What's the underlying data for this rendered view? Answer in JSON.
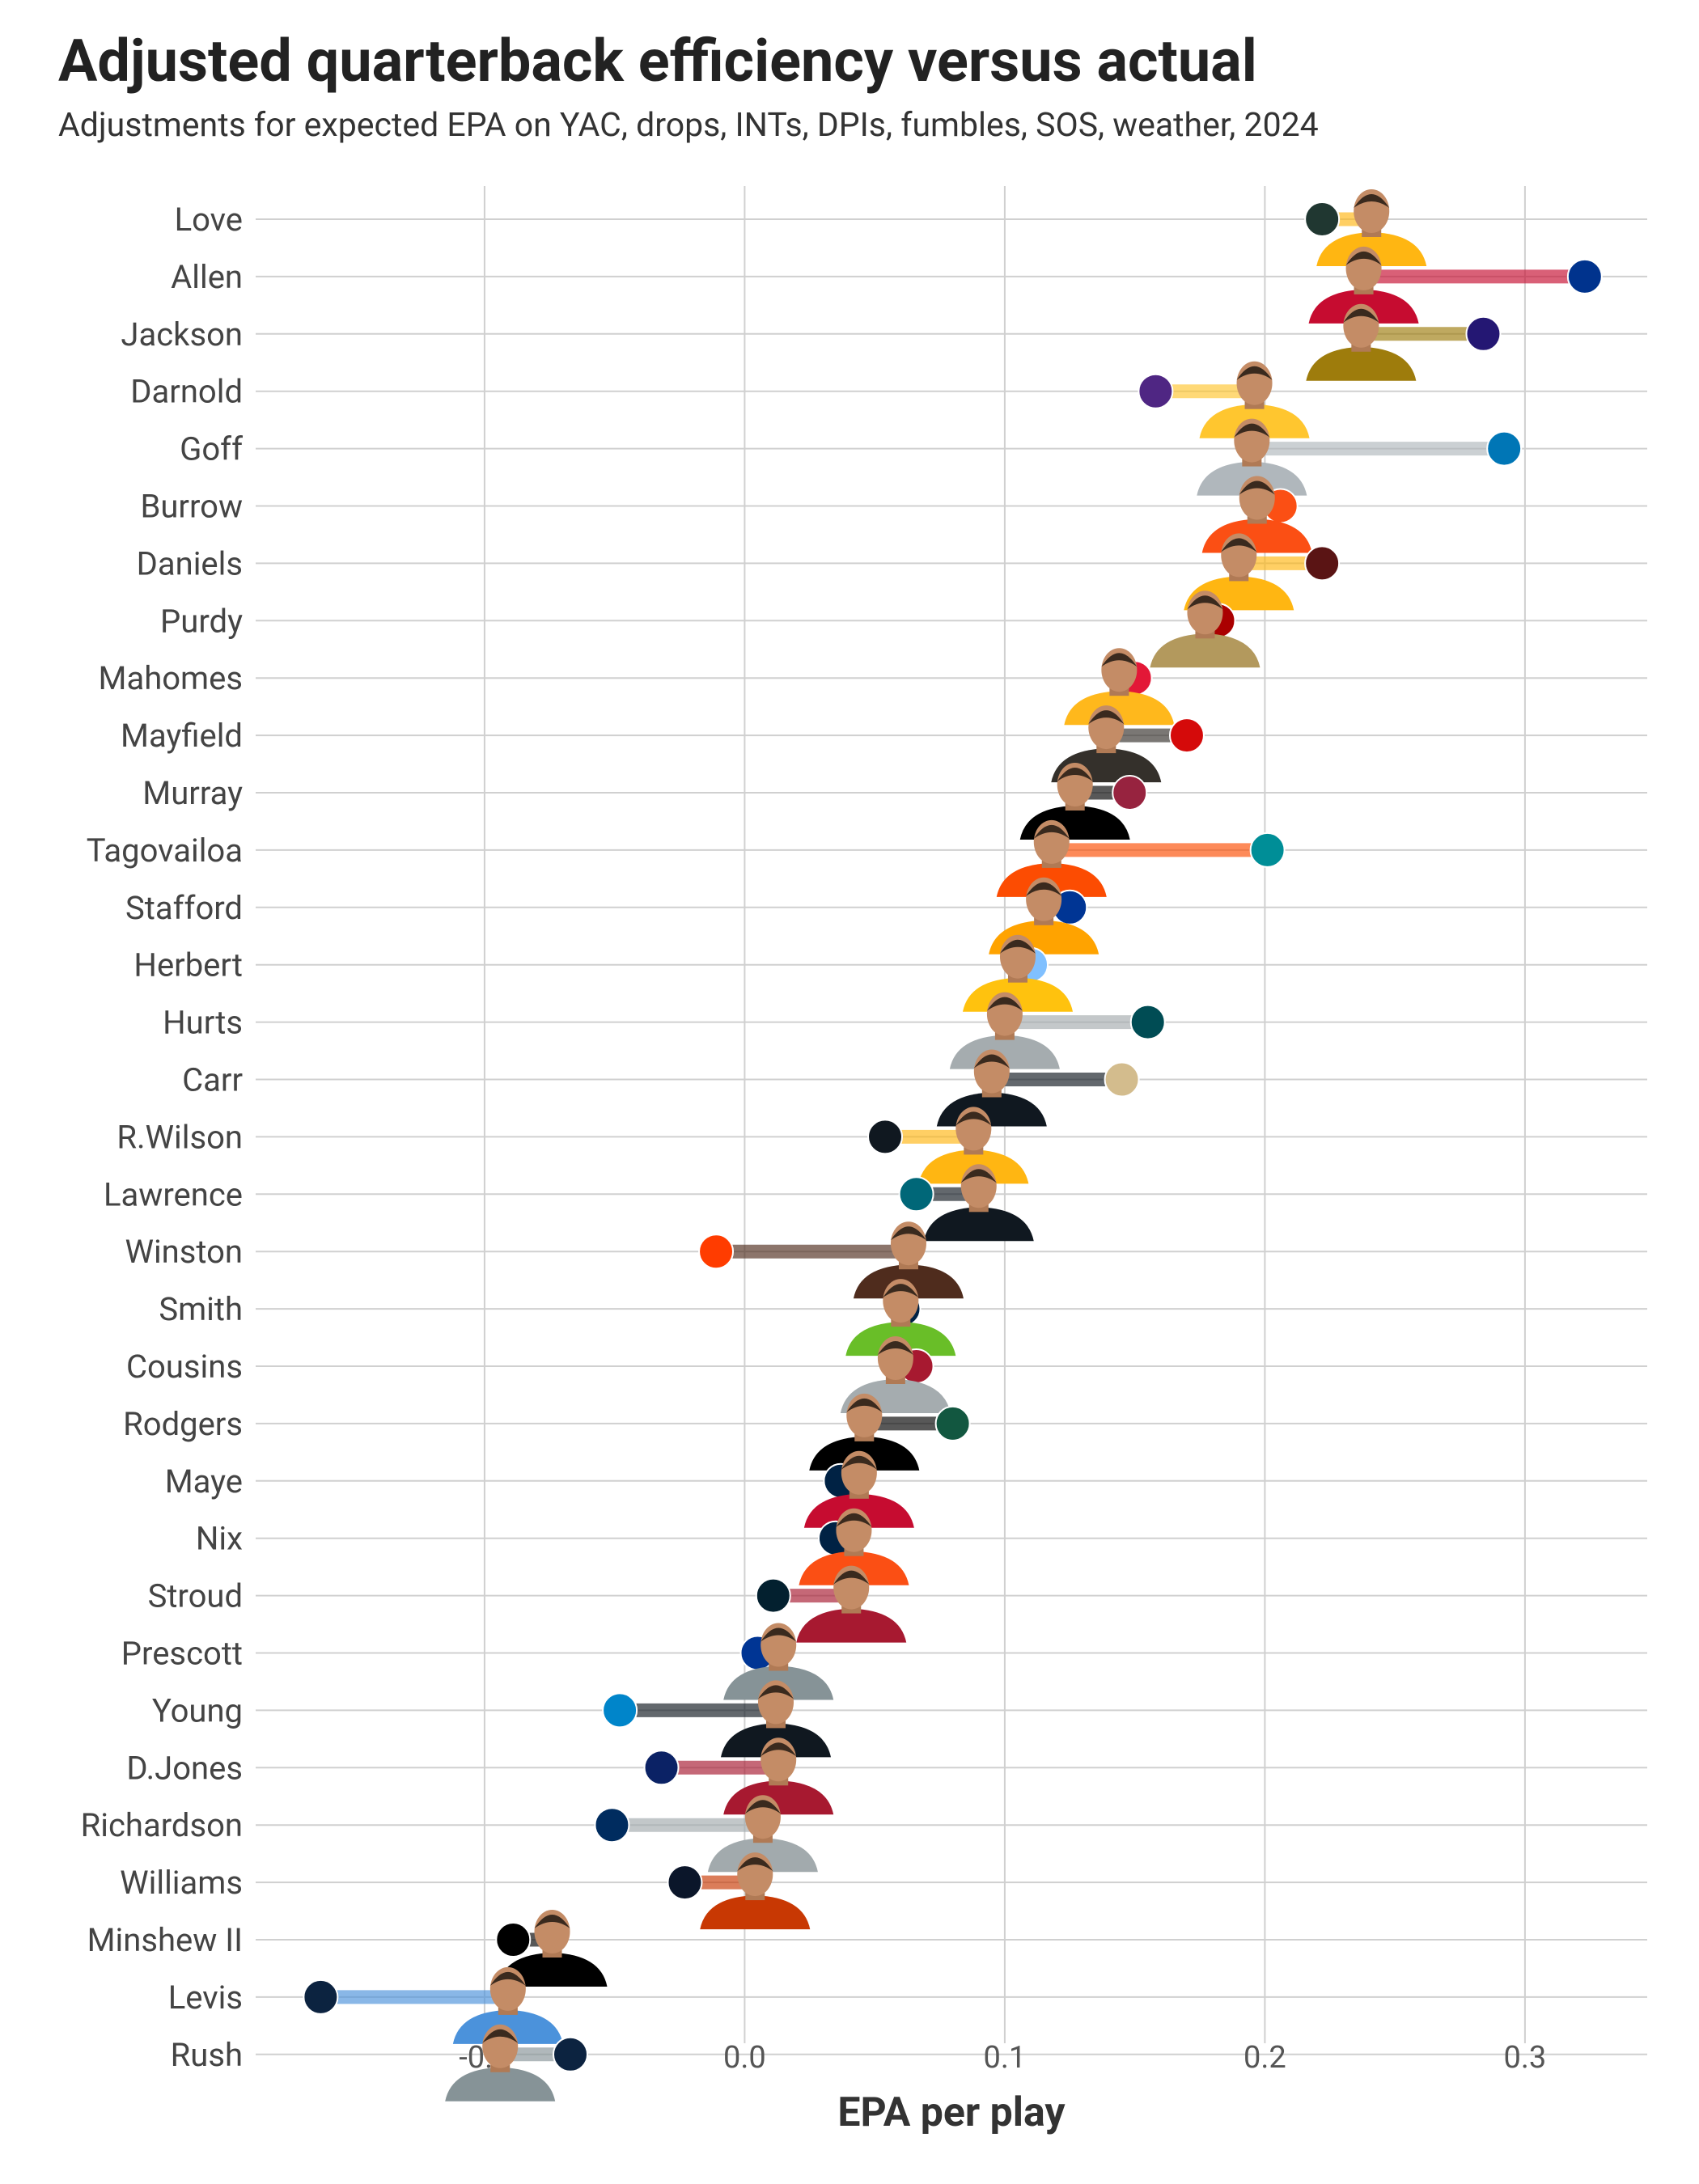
{
  "chart_data": {
    "type": "dumbbell",
    "title": "Adjusted quarterback efficiency versus actual",
    "subtitle": "Adjustments for expected EPA on YAC, drops, INTs, DPIs, fumbles, SOS, weather, 2024",
    "x_label": "EPA per play",
    "categories": [
      "Love",
      "Allen",
      "Jackson",
      "Darnold",
      "Goff",
      "Burrow",
      "Daniels",
      "Purdy",
      "Mahomes",
      "Mayfield",
      "Murray",
      "Tagovailoa",
      "Stafford",
      "Herbert",
      "Hurts",
      "Carr",
      "R.Wilson",
      "Lawrence",
      "Winston",
      "Smith",
      "Cousins",
      "Rodgers",
      "Maye",
      "Nix",
      "Stroud",
      "Prescott",
      "Young",
      "D.Jones",
      "Richardson",
      "Williams",
      "Minshew II",
      "Levis",
      "Rush"
    ],
    "series": [
      {
        "values": [
          0.241,
          0.238,
          0.237,
          0.196,
          0.195,
          0.197,
          0.19,
          0.177,
          0.144,
          0.139,
          0.127,
          0.118,
          0.115,
          0.105,
          0.1,
          0.095,
          0.088,
          0.09,
          0.063,
          0.06,
          0.058,
          0.046,
          0.044,
          0.042,
          0.041,
          0.013,
          0.012,
          0.013,
          0.007,
          0.004,
          -0.074,
          -0.091,
          -0.094
        ]
      },
      {
        "values": [
          0.222,
          0.323,
          0.284,
          0.158,
          0.292,
          0.206,
          0.222,
          0.182,
          0.15,
          0.17,
          0.148,
          0.201,
          0.125,
          0.11,
          0.155,
          0.145,
          0.054,
          0.066,
          -0.011,
          0.061,
          0.066,
          0.08,
          0.037,
          0.035,
          0.011,
          0.005,
          -0.048,
          -0.032,
          -0.051,
          -0.023,
          -0.089,
          -0.163,
          -0.067
        ],
        "colors": [
          "#203731",
          "#00338d",
          "#241773",
          "#4f2683",
          "#0076b6",
          "#fb4f14",
          "#5a1414",
          "#aa0000",
          "#e31837",
          "#d50a0a",
          "#97233f",
          "#008e97",
          "#003594",
          "#80c0ff",
          "#004c54",
          "#d3bc8d",
          "#101820",
          "#006778",
          "#ff3c00",
          "#002244",
          "#a71930",
          "#125740",
          "#002244",
          "#002244",
          "#03202f",
          "#003594",
          "#0085ca",
          "#0b2265",
          "#002c5f",
          "#0b162a",
          "#000000",
          "#0c2340",
          "#0c2340"
        ]
      }
    ],
    "segment_colors": [
      "#ffb612",
      "#c60c30",
      "#9e7c0c",
      "#ffc62f",
      "#b0b7bc",
      "#fb4f14",
      "#ffb612",
      "#b3995d",
      "#ffb81c",
      "#34302b",
      "#000000",
      "#fc4c02",
      "#ffa300",
      "#ffc20e",
      "#a5acaf",
      "#101820",
      "#ffb612",
      "#101820",
      "#4f2c1d",
      "#69be28",
      "#a5acaf",
      "#000000",
      "#c60c30",
      "#fb4f14",
      "#a71930",
      "#869397",
      "#101820",
      "#a71930",
      "#a2aaad",
      "#c83803",
      "#000000",
      "#4b92db",
      "#869397"
    ],
    "xlim": [
      -0.188,
      0.347
    ],
    "xticks": [
      -0.1,
      {
        "value": 0,
        "label": "0.0"
      },
      0.1,
      0.2,
      0.3
    ],
    "grid": true
  }
}
